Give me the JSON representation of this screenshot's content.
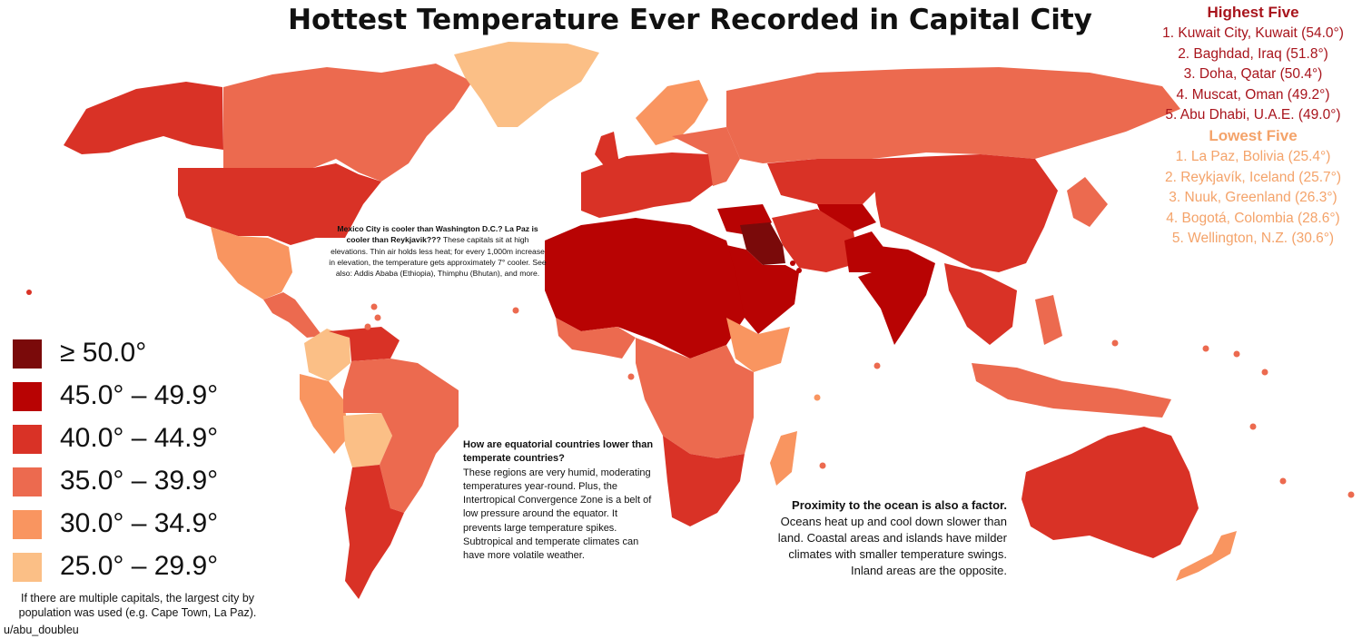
{
  "title": "Hottest Temperature Ever Recorded in Capital City",
  "highest": {
    "heading": "Highest Five",
    "items": [
      "1. Kuwait City, Kuwait (54.0°)",
      "2. Baghdad, Iraq (51.8°)",
      "3. Doha, Qatar (50.4°)",
      "4. Muscat, Oman (49.2°)",
      "5. Abu Dhabi, U.A.E. (49.0°)"
    ]
  },
  "lowest": {
    "heading": "Lowest Five",
    "items": [
      "1. La Paz, Bolivia (25.4°)",
      "2. Reykjavík, Iceland (25.7°)",
      "3. Nuuk, Greenland (26.3°)",
      "4. Bogotá, Colombia (28.6°)",
      "5. Wellington, N.Z. (30.6°)"
    ]
  },
  "legend": [
    {
      "label": "≥ 50.0°",
      "color": "#7a0a0a"
    },
    {
      "label": "45.0° – 49.9°",
      "color": "#b80303"
    },
    {
      "label": "40.0° – 44.9°",
      "color": "#d93226"
    },
    {
      "label": "35.0° – 39.9°",
      "color": "#ec6a4f"
    },
    {
      "label": "30.0° – 34.9°",
      "color": "#f99560"
    },
    {
      "label": "25.0° – 29.9°",
      "color": "#fbbf86"
    }
  ],
  "notes": {
    "elevation_bold": "Mexico City is cooler than Washington D.C.? La Paz is cooler than Reykjavik???",
    "elevation_text": " These capitals sit at high elevations. Thin air holds less heat; for every 1,000m increase in elevation, the temperature gets approximately 7° cooler. See also: Addis Ababa (Ethiopia), Thimphu (Bhutan), and more.",
    "equator_bold": "How are equatorial countries lower than temperate countries?",
    "equator_text": "These regions are very humid, moderating temperatures year-round. Plus, the Intertropical Convergence Zone is a belt of low pressure around the equator. It prevents large temperature spikes. Subtropical and temperate climates can have more volatile weather.",
    "ocean_bold": "Proximity to the ocean is also a factor.",
    "ocean_text": "Oceans heat up and cool down slower than land. Coastal areas and islands have milder climates with smaller temperature swings. Inland areas are the opposite."
  },
  "footnote": "If there are multiple capitals, the largest city by population was used (e.g. Cape Town, La Paz).",
  "credit": "u/abu_doubleu"
}
